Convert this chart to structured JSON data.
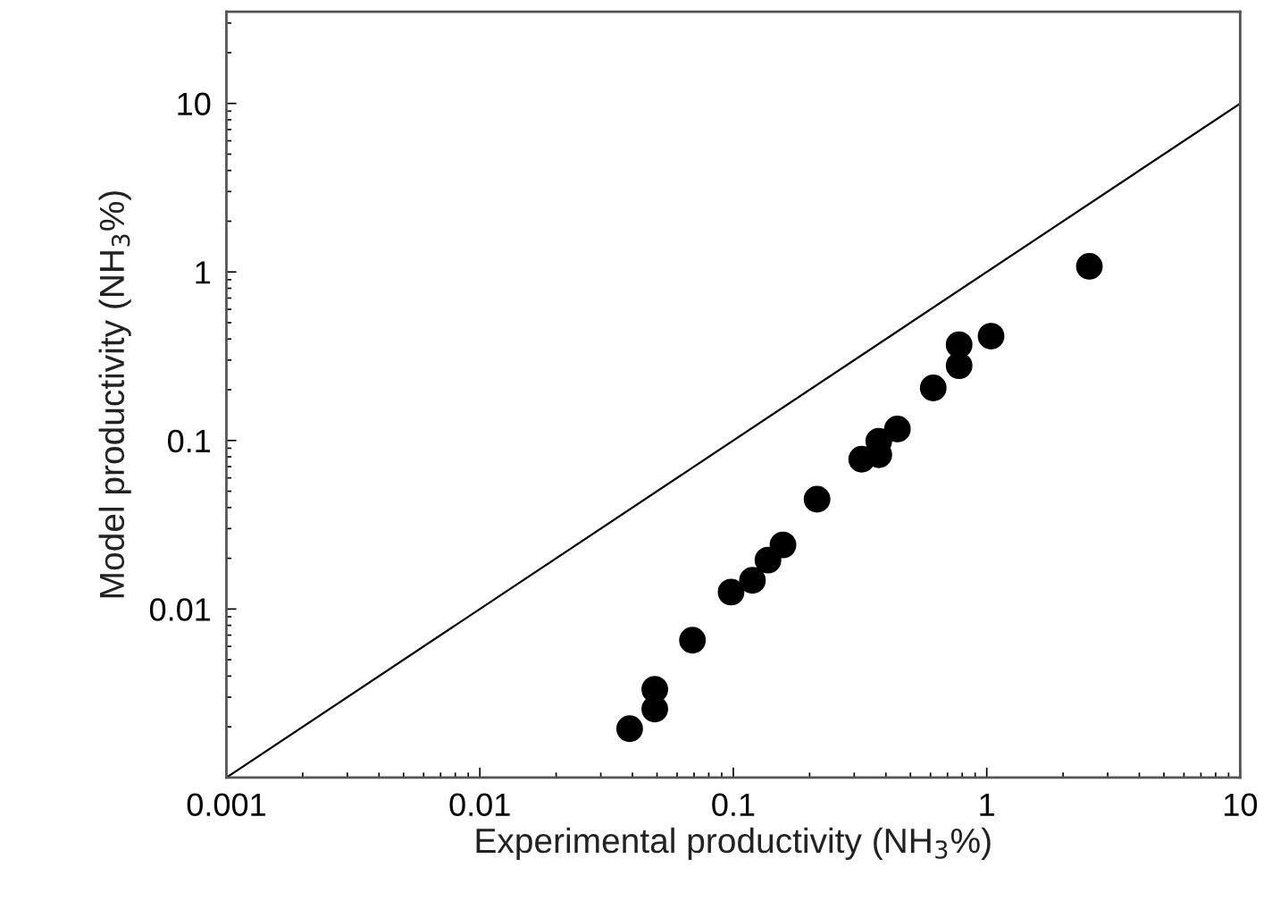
{
  "chart_data": {
    "type": "scatter",
    "xlabel": "Experimental productivity (NH$_{3}$%)",
    "ylabel": "Model productivity (NH$_{3}$%)",
    "log": "xy",
    "grid": false,
    "legend": false,
    "xlim": [
      0.001,
      10
    ],
    "ylim": [
      0.001,
      35
    ],
    "xticks": [
      {
        "value": 0.001,
        "label": "0.001"
      },
      {
        "value": 0.01,
        "label": "0.01"
      },
      {
        "value": 0.1,
        "label": "0.1"
      },
      {
        "value": 1,
        "label": "1"
      },
      {
        "value": 10,
        "label": "10"
      }
    ],
    "yticks": [
      {
        "value": 0.01,
        "label": "0.01"
      },
      {
        "value": 0.1,
        "label": "0.1"
      },
      {
        "value": 1,
        "label": "1"
      },
      {
        "value": 10,
        "label": "10"
      }
    ],
    "series": [
      {
        "color": "#000000",
        "marker": "circle",
        "x": [
          0.039,
          0.049,
          0.049,
          0.069,
          0.098,
          0.119,
          0.137,
          0.157,
          0.214,
          0.321,
          0.375,
          0.375,
          0.444,
          0.615,
          0.778,
          0.778,
          1.04,
          2.54
        ],
        "values": [
          0.00195,
          0.00255,
          0.00334,
          0.00653,
          0.0126,
          0.0148,
          0.0195,
          0.024,
          0.0448,
          0.0774,
          0.0823,
          0.099,
          0.117,
          0.205,
          0.278,
          0.37,
          0.416,
          1.08
        ]
      },
      {
        "type": "line",
        "color": "#000000",
        "marker": "none",
        "line_style": "solid",
        "x": [
          0.001,
          10
        ],
        "values": [
          0.001,
          10
        ]
      }
    ]
  }
}
